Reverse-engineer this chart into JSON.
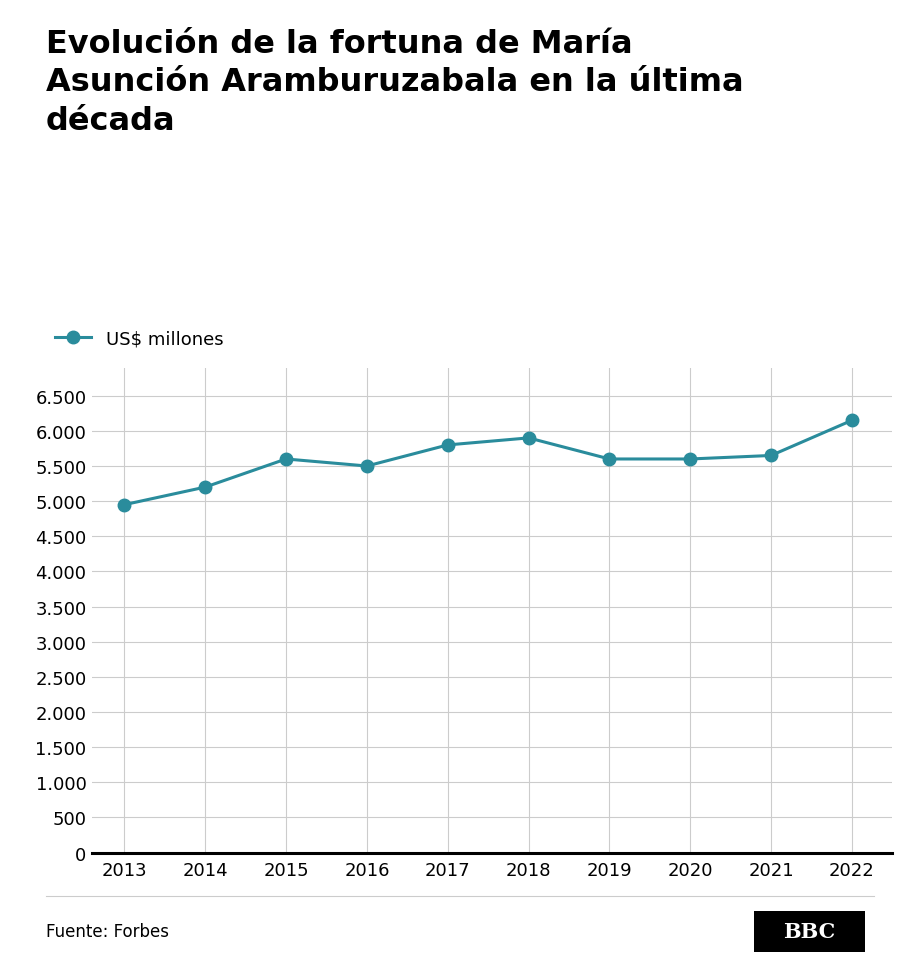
{
  "title": "Evolución de la fortuna de María\nAsunción Aramburuzabala en la última\ndécada",
  "legend_label": "US$ millones",
  "years": [
    2013,
    2014,
    2015,
    2016,
    2017,
    2018,
    2019,
    2020,
    2021,
    2022
  ],
  "values": [
    4950,
    5200,
    5600,
    5500,
    5800,
    5900,
    5600,
    5600,
    5650,
    6150
  ],
  "line_color": "#2a8c9c",
  "marker_color": "#2a8c9c",
  "yticks": [
    0,
    500,
    1000,
    1500,
    2000,
    2500,
    3000,
    3500,
    4000,
    4500,
    5000,
    5500,
    6000,
    6500
  ],
  "ylim": [
    0,
    6900
  ],
  "source_text": "Fuente: Forbes",
  "background_color": "#ffffff",
  "grid_color": "#cccccc",
  "title_fontsize": 23,
  "axis_fontsize": 13,
  "legend_fontsize": 13,
  "source_fontsize": 12,
  "bbc_text": "BBC",
  "bbc_bg": "#000000",
  "bbc_text_color": "#ffffff"
}
